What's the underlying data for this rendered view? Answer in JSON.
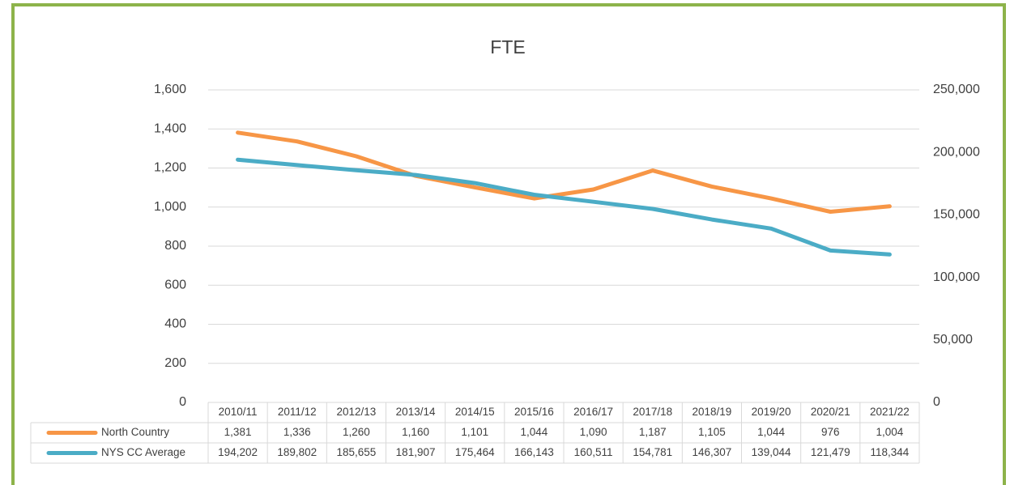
{
  "chart_data": {
    "type": "line",
    "title": "FTE",
    "categories": [
      "2010/11",
      "2011/12",
      "2012/13",
      "2013/14",
      "2014/15",
      "2015/16",
      "2016/17",
      "2017/18",
      "2018/19",
      "2019/20",
      "2020/21",
      "2021/22"
    ],
    "series": [
      {
        "name": "North Country",
        "color": "#f79646",
        "values": [
          1381,
          1336,
          1260,
          1160,
          1101,
          1044,
          1090,
          1187,
          1105,
          1044,
          976,
          1004
        ],
        "value_labels": [
          "1,381",
          "1,336",
          "1,260",
          "1,160",
          "1,101",
          "1,044",
          "1,090",
          "1,187",
          "1,105",
          "1,044",
          "976",
          "1,004"
        ]
      },
      {
        "name": "NYS CC Average",
        "color": "#4bacc6",
        "axis": "y2",
        "values": [
          194202,
          189802,
          185655,
          181907,
          175464,
          166143,
          160511,
          154781,
          146307,
          139044,
          121479,
          118344
        ],
        "value_labels": [
          "194,202",
          "189,802",
          "185,655",
          "181,907",
          "175,464",
          "166,143",
          "160,511",
          "154,781",
          "146,307",
          "139,044",
          "121,479",
          "118,344"
        ]
      }
    ],
    "ylim": [
      0,
      1600
    ],
    "yticks": [
      0,
      200,
      400,
      600,
      800,
      {
        "value": 1000,
        "label": "1,000"
      },
      {
        "value": 1200,
        "label": "1,200"
      },
      {
        "value": 1400,
        "label": "1,400"
      },
      {
        "value": 1600,
        "label": "1,600"
      }
    ],
    "y2lim": [
      0,
      250000
    ],
    "y2ticks": [
      0,
      {
        "value": 50000,
        "label": "50,000"
      },
      {
        "value": 100000,
        "label": "100,000"
      },
      {
        "value": 150000,
        "label": "150,000"
      },
      {
        "value": 200000,
        "label": "200,000"
      },
      {
        "value": 250000,
        "label": "250,000"
      }
    ],
    "grid": true
  }
}
